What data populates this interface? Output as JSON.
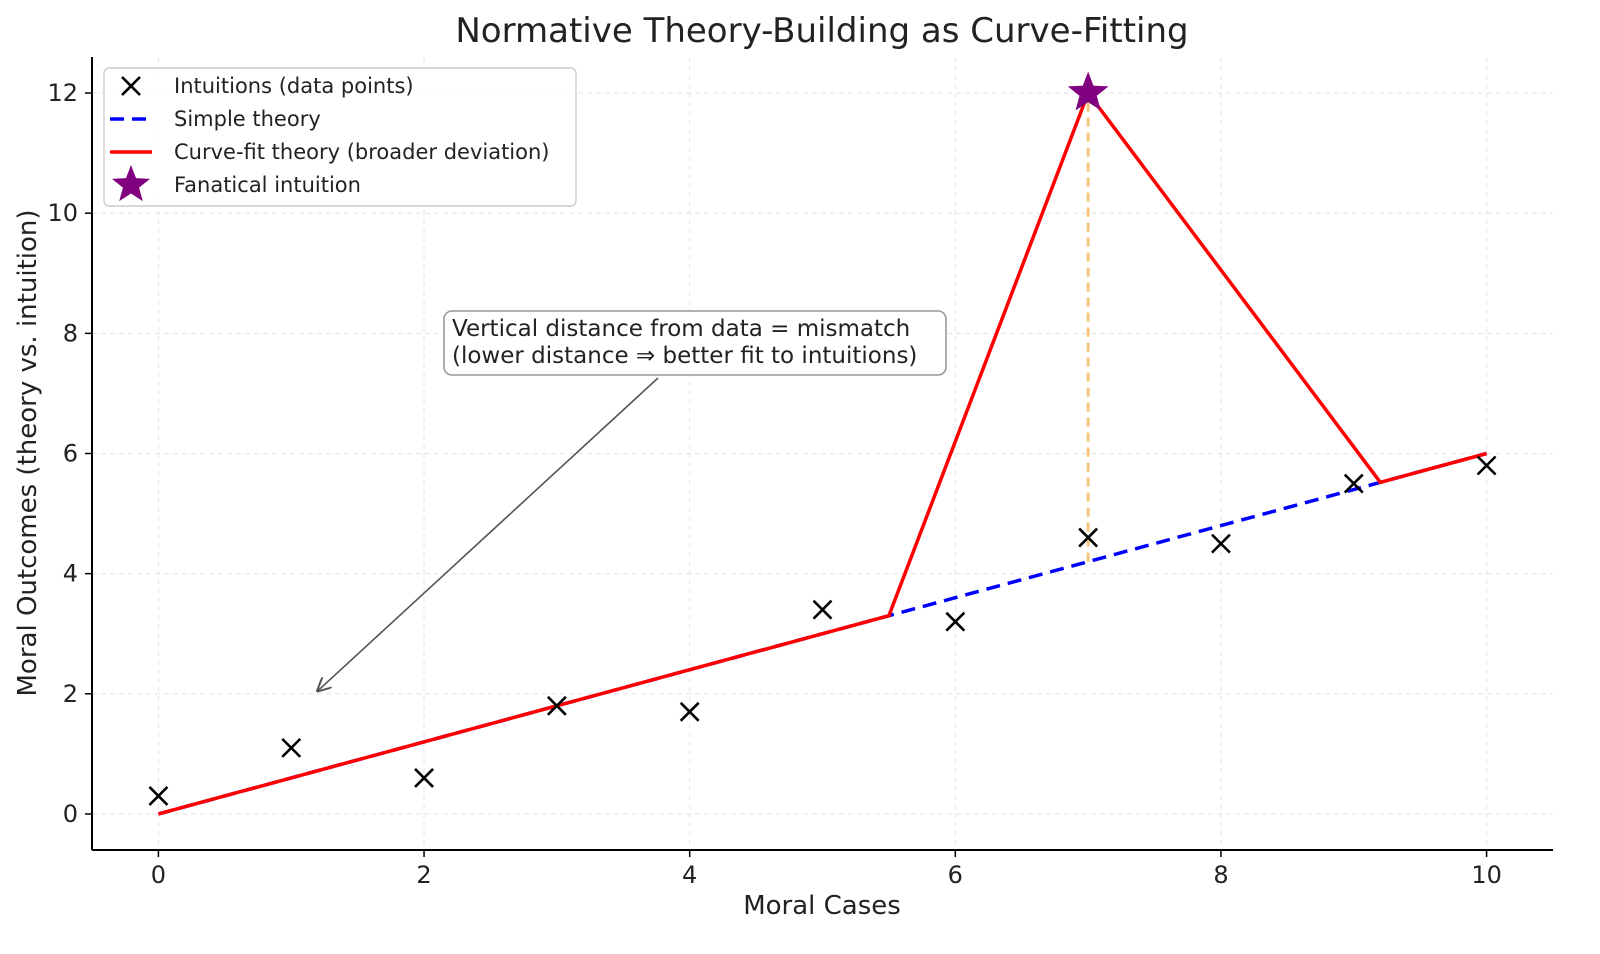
{
  "chart_data": {
    "type": "line",
    "title": "Normative Theory-Building as Curve-Fitting",
    "xlabel": "Moral Cases",
    "ylabel": "Moral Outcomes (theory vs. intuition)",
    "xlim": [
      -0.5,
      10.5
    ],
    "ylim": [
      -0.6,
      12.6
    ],
    "xticks": [
      0,
      2,
      4,
      6,
      8,
      10
    ],
    "yticks": [
      0,
      2,
      4,
      6,
      8,
      10,
      12
    ],
    "grid": true,
    "legend_position": "top-left",
    "series": [
      {
        "name": "Intuitions (data points)",
        "kind": "scatter",
        "marker": "x",
        "color": "#000000",
        "x": [
          0,
          1,
          2,
          3,
          4,
          5,
          6,
          7,
          8,
          9,
          10
        ],
        "y": [
          0.3,
          1.1,
          0.6,
          1.8,
          1.7,
          3.4,
          3.2,
          4.6,
          4.5,
          5.5,
          5.8
        ]
      },
      {
        "name": "Simple theory",
        "kind": "line",
        "style": "dashed",
        "color": "#0000ff",
        "x": [
          0,
          10
        ],
        "y": [
          0,
          6
        ]
      },
      {
        "name": "Curve-fit theory (broader deviation)",
        "kind": "line",
        "style": "solid",
        "color": "#ff0000",
        "x": [
          0,
          5.5,
          7,
          9.2,
          10
        ],
        "y": [
          0,
          3.3,
          12,
          5.52,
          6
        ]
      },
      {
        "name": "Fanatical intuition",
        "kind": "scatter",
        "marker": "star",
        "color": "#800080",
        "x": [
          7
        ],
        "y": [
          12
        ]
      }
    ],
    "vertical_connector": {
      "x": 7,
      "y_from": 4.2,
      "y_to": 12,
      "color": "#f5c77e",
      "style": "dashed"
    },
    "annotation": {
      "lines": [
        "Vertical distance from data = mismatch",
        "(lower distance ⇒ better fit to intuitions)"
      ],
      "arrow_target": {
        "x": 1.2,
        "y": 2.05
      }
    }
  }
}
